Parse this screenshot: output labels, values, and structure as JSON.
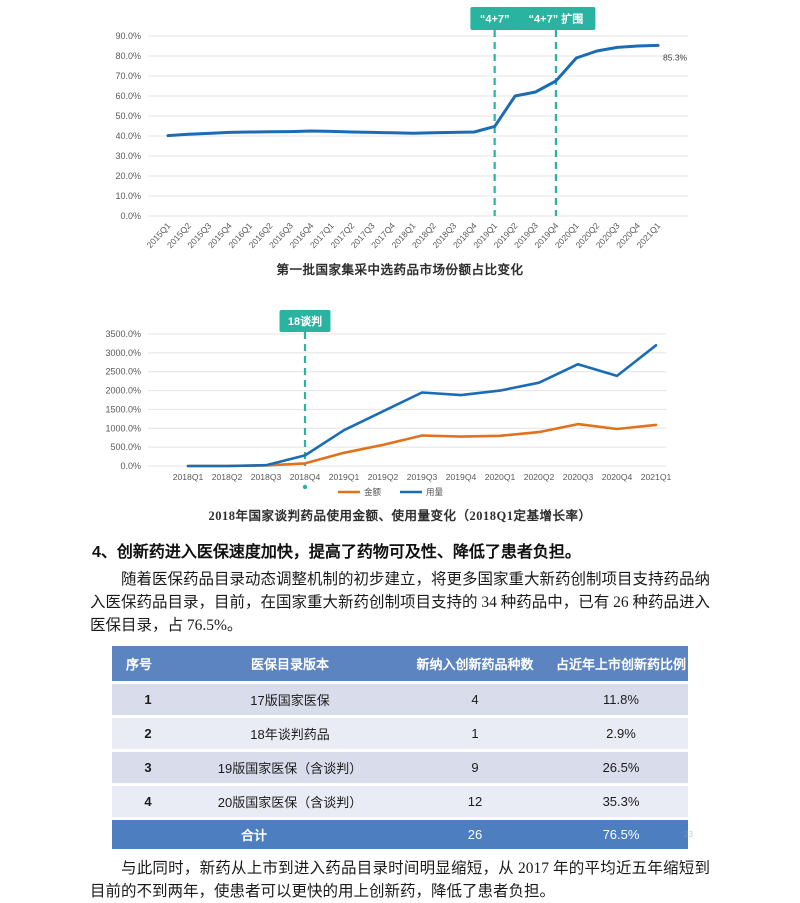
{
  "chart_data": [
    {
      "type": "line",
      "title": "第一批国家集采中选药品市场份额占比变化",
      "categories": [
        "2015Q1",
        "2015Q2",
        "2015Q3",
        "2015Q4",
        "2016Q1",
        "2016Q2",
        "2016Q3",
        "2016Q4",
        "2017Q1",
        "2017Q2",
        "2017Q3",
        "2017Q4",
        "2018Q1",
        "2018Q2",
        "2018Q3",
        "2018Q4",
        "2019Q1",
        "2019Q2",
        "2019Q3",
        "2019Q4",
        "2020Q1",
        "2020Q2",
        "2020Q3",
        "2020Q4",
        "2021Q1"
      ],
      "series": [
        {
          "name": "中选药品市场份额",
          "color": "#1b6cb5",
          "values": [
            40.2,
            40.9,
            41.3,
            41.8,
            42.0,
            42.1,
            42.2,
            42.5,
            42.3,
            42.0,
            41.8,
            41.6,
            41.4,
            41.6,
            41.8,
            42.0,
            44.8,
            60.0,
            62.0,
            67.5,
            79.0,
            82.5,
            84.3,
            85.0,
            85.3
          ]
        }
      ],
      "ylim": [
        0,
        90
      ],
      "ytick_step": 10,
      "tick_suffix": "%",
      "grid": true,
      "legend": false,
      "accent": "#2bb3a2",
      "annotations": [
        {
          "at": "2019Q1",
          "label": "“4+7”"
        },
        {
          "at": "2019Q4",
          "label": "“4+7” 扩围"
        }
      ],
      "end_label": "85.3%"
    },
    {
      "type": "line",
      "title": "2018年国家谈判药品使用金额、使用量变化（2018Q1定基增长率）",
      "categories": [
        "2018Q1",
        "2018Q2",
        "2018Q3",
        "2018Q4",
        "2019Q1",
        "2019Q2",
        "2019Q3",
        "2019Q4",
        "2020Q1",
        "2020Q2",
        "2020Q3",
        "2020Q4",
        "2021Q1"
      ],
      "series": [
        {
          "name": "金额",
          "color": "#e2711d",
          "values": [
            0,
            0,
            15,
            70,
            350,
            560,
            810,
            780,
            800,
            900,
            1110,
            980,
            1090
          ]
        },
        {
          "name": "用量",
          "color": "#1b6cb5",
          "values": [
            0,
            0,
            20,
            280,
            950,
            1450,
            1950,
            1880,
            2000,
            2210,
            2700,
            2390,
            3200
          ]
        }
      ],
      "ylim": [
        0,
        3500
      ],
      "ytick_step": 500,
      "tick_suffix": "%",
      "grid": true,
      "legend": true,
      "legend_position": "bottom",
      "accent": "#2bb3a2",
      "annotations": [
        {
          "at": "2018Q4",
          "label": "18谈判"
        }
      ]
    }
  ],
  "section": {
    "heading": "4、创新药进入医保速度加快，提高了药物可及性、降低了患者负担。",
    "paragraph1": "随着医保药品目录动态调整机制的初步建立，将更多国家重大新药创制项目支持药品纳入医保药品目录，目前，在国家重大新药创制项目支持的 34 种药品中，已有 26 种药品进入医保目录，占 76.5%。",
    "paragraph2": "与此同时，新药从上市到进入药品目录时间明显缩短，从 2017 年的平均近五年缩短到目前的不到两年，使患者可以更快的用上创新药，降低了患者负担。"
  },
  "table": {
    "headers": [
      "序号",
      "医保目录版本",
      "新纳入创新药品种数",
      "占近年上市创新药比例"
    ],
    "rows": [
      [
        "1",
        "17版国家医保",
        "4",
        "11.8%"
      ],
      [
        "2",
        "18年谈判药品",
        "1",
        "2.9%"
      ],
      [
        "3",
        "19版国家医保（含谈判）",
        "9",
        "26.5%"
      ],
      [
        "4",
        "20版国家医保（含谈判）",
        "12",
        "35.3%"
      ]
    ],
    "footer": {
      "label": "合计",
      "count": "26",
      "percent": "76.5%"
    },
    "colors": {
      "header_bg": "#5b84c1",
      "row_odd": "#d8dceb",
      "row_even": "#e9ebf5",
      "footer_bg": "#4c7ec0"
    }
  },
  "artifact": {
    "page_mark": "23"
  }
}
